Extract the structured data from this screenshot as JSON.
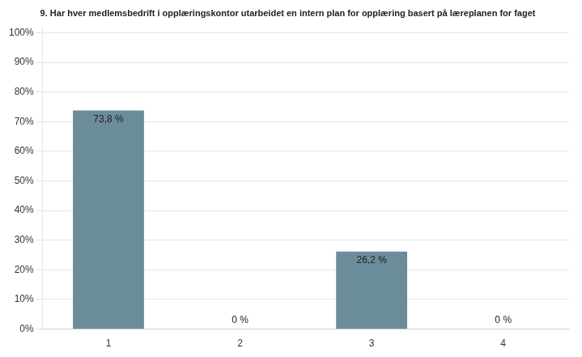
{
  "chart_data": {
    "type": "bar",
    "title": "9. Har hver medlemsbedrift i opplæringskontor utarbeidet en intern plan for opplæring basert på læreplanen for faget",
    "categories": [
      "1",
      "2",
      "3",
      "4"
    ],
    "values": [
      73.8,
      0.0,
      26.2,
      0.0
    ],
    "value_labels": [
      "73,8 %",
      "0 %",
      "26,2 %",
      "0 %"
    ],
    "color": "#6b8c9a",
    "ylim": [
      0,
      102
    ],
    "yticks": [
      {
        "value": 0,
        "label": "0%"
      },
      {
        "value": 10,
        "label": "10%"
      },
      {
        "value": 20,
        "label": "20%"
      },
      {
        "value": 30,
        "label": "30%"
      },
      {
        "value": 40,
        "label": "40%"
      },
      {
        "value": 50,
        "label": "50%"
      },
      {
        "value": 60,
        "label": "60%"
      },
      {
        "value": 70,
        "label": "70%"
      },
      {
        "value": 80,
        "label": "80%"
      },
      {
        "value": 90,
        "label": "90%"
      },
      {
        "value": 100,
        "label": "100%"
      }
    ],
    "grid": true,
    "data_labels": true
  }
}
